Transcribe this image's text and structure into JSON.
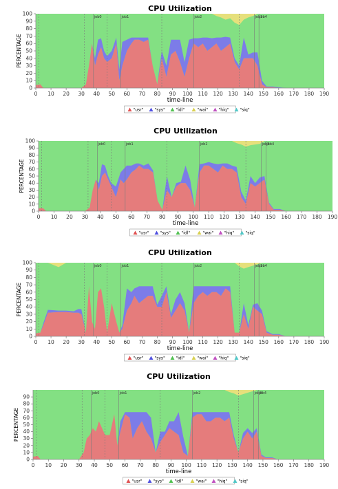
{
  "chart_data": [
    {
      "type": "area",
      "title": "CPU Utilization",
      "xlabel": "time-line",
      "ylabel": "PERCENTAGE",
      "xlim": [
        0,
        190
      ],
      "ylim": [
        0,
        100
      ],
      "xticks": [
        0,
        10,
        20,
        30,
        40,
        50,
        60,
        70,
        80,
        90,
        100,
        110,
        120,
        130,
        140,
        150,
        160,
        170,
        180,
        190
      ],
      "yticks": [
        0,
        10,
        20,
        30,
        40,
        50,
        60,
        70,
        80,
        90,
        100
      ],
      "grid": false,
      "legend": "bottom",
      "legend_labels": [
        "\"usr\"",
        "\"sys\"",
        "\"idl\"",
        "\"wai\"",
        "\"hiq\"",
        "\"siq\""
      ],
      "markers": [
        {
          "x": 2,
          "label": ""
        },
        {
          "x": 32,
          "label": ""
        },
        {
          "x": 38,
          "label": "job0"
        },
        {
          "x": 47,
          "label": ""
        },
        {
          "x": 56,
          "label": "job1"
        },
        {
          "x": 83,
          "label": ""
        },
        {
          "x": 104,
          "label": "job2"
        },
        {
          "x": 134,
          "label": ""
        },
        {
          "x": 144,
          "label": "job3"
        },
        {
          "x": 147,
          "label": "job4"
        }
      ],
      "x": [
        0,
        3,
        5,
        30,
        33,
        35,
        37,
        39,
        41,
        43,
        45,
        47,
        50,
        53,
        55,
        57,
        60,
        63,
        65,
        68,
        71,
        74,
        77,
        80,
        83,
        86,
        89,
        92,
        95,
        98,
        101,
        104,
        107,
        110,
        113,
        116,
        119,
        122,
        125,
        128,
        131,
        134,
        137,
        140,
        143,
        146,
        149,
        152,
        156,
        160,
        165,
        190
      ],
      "usr": [
        4,
        5,
        0,
        0,
        5,
        30,
        60,
        30,
        45,
        55,
        40,
        35,
        40,
        60,
        10,
        30,
        50,
        60,
        65,
        65,
        62,
        65,
        30,
        5,
        40,
        15,
        45,
        50,
        35,
        15,
        40,
        60,
        55,
        60,
        50,
        55,
        60,
        50,
        55,
        60,
        35,
        25,
        40,
        40,
        40,
        30,
        5,
        1,
        1,
        0,
        0,
        0
      ],
      "sys": [
        0,
        0,
        0,
        0,
        0,
        0,
        0,
        10,
        20,
        12,
        10,
        8,
        10,
        8,
        15,
        32,
        15,
        8,
        3,
        3,
        6,
        3,
        0,
        0,
        10,
        15,
        20,
        15,
        30,
        20,
        25,
        7,
        12,
        8,
        18,
        12,
        8,
        18,
        14,
        8,
        5,
        5,
        28,
        5,
        8,
        18,
        5,
        1,
        1,
        1,
        0,
        0
      ],
      "wai": [
        0,
        0,
        0,
        0,
        0,
        0,
        0,
        0,
        0,
        0,
        0,
        0,
        0,
        0,
        0,
        0,
        0,
        0,
        0,
        0,
        0,
        0,
        0,
        0,
        0,
        0,
        0,
        0,
        0,
        0,
        0,
        0,
        0,
        0,
        0,
        0,
        3,
        5,
        8,
        6,
        12,
        15,
        8,
        5,
        3,
        0,
        0,
        0,
        0,
        0,
        0,
        0
      ]
    },
    {
      "type": "area",
      "title": "CPU Utilization",
      "xlabel": "time-line",
      "ylabel": "PERCENTAGE",
      "xlim": [
        0,
        190
      ],
      "ylim": [
        0,
        100
      ],
      "xticks": [
        0,
        10,
        20,
        30,
        40,
        50,
        60,
        70,
        80,
        90,
        100,
        110,
        120,
        130,
        140,
        150,
        160,
        170,
        180,
        190
      ],
      "yticks": [
        0,
        10,
        20,
        30,
        40,
        50,
        60,
        70,
        80,
        90,
        100
      ],
      "grid": false,
      "legend": "bottom",
      "legend_labels": [
        "\"usr\"",
        "\"sys\"",
        "\"idl\"",
        "\"wai\"",
        "\"hiq\"",
        "\"siq\""
      ],
      "markers": [
        {
          "x": 2,
          "label": ""
        },
        {
          "x": 32,
          "label": ""
        },
        {
          "x": 38,
          "label": "job0"
        },
        {
          "x": 47,
          "label": ""
        },
        {
          "x": 56,
          "label": "job1"
        },
        {
          "x": 83,
          "label": ""
        },
        {
          "x": 104,
          "label": "job2"
        },
        {
          "x": 134,
          "label": ""
        },
        {
          "x": 144,
          "label": "job3"
        },
        {
          "x": 147,
          "label": "job4"
        }
      ],
      "x": [
        0,
        3,
        5,
        30,
        33,
        35,
        37,
        39,
        41,
        43,
        45,
        47,
        50,
        53,
        55,
        57,
        60,
        63,
        65,
        68,
        71,
        74,
        77,
        80,
        83,
        86,
        89,
        92,
        95,
        98,
        101,
        104,
        107,
        110,
        113,
        116,
        119,
        122,
        125,
        128,
        131,
        134,
        137,
        140,
        143,
        146,
        149,
        152,
        156,
        160,
        165,
        190
      ],
      "usr": [
        4,
        4,
        0,
        0,
        5,
        30,
        45,
        30,
        50,
        55,
        45,
        35,
        20,
        45,
        40,
        45,
        55,
        60,
        65,
        60,
        60,
        55,
        15,
        2,
        30,
        20,
        35,
        40,
        40,
        30,
        5,
        55,
        65,
        65,
        60,
        55,
        65,
        60,
        60,
        55,
        20,
        10,
        40,
        35,
        40,
        45,
        10,
        2,
        2,
        0,
        0,
        0
      ],
      "sys": [
        0,
        0,
        0,
        0,
        0,
        0,
        0,
        10,
        17,
        10,
        5,
        5,
        15,
        10,
        20,
        20,
        10,
        8,
        3,
        5,
        8,
        3,
        0,
        0,
        20,
        0,
        5,
        2,
        25,
        15,
        0,
        12,
        3,
        5,
        8,
        12,
        3,
        8,
        5,
        8,
        8,
        5,
        10,
        5,
        8,
        5,
        2,
        1,
        1,
        0,
        0,
        0
      ],
      "wai": [
        0,
        0,
        0,
        0,
        0,
        0,
        0,
        0,
        0,
        0,
        0,
        0,
        0,
        0,
        0,
        0,
        0,
        0,
        0,
        0,
        0,
        0,
        0,
        0,
        0,
        0,
        0,
        0,
        0,
        0,
        0,
        0,
        0,
        0,
        0,
        0,
        0,
        0,
        0,
        3,
        5,
        8,
        6,
        5,
        4,
        0,
        0,
        0,
        0,
        0,
        0,
        0
      ]
    },
    {
      "type": "area",
      "title": "CPU Utilization",
      "xlabel": "time-line",
      "ylabel": "PERCENTAGE",
      "xlim": [
        0,
        190
      ],
      "ylim": [
        0,
        100
      ],
      "xticks": [
        0,
        10,
        20,
        30,
        40,
        50,
        60,
        70,
        80,
        90,
        100,
        110,
        120,
        130,
        140,
        150,
        160,
        170,
        180,
        190
      ],
      "yticks": [
        0,
        10,
        20,
        30,
        40,
        50,
        60,
        70,
        80,
        90,
        100
      ],
      "grid": false,
      "legend": "bottom",
      "legend_labels": [
        "\"usr\"",
        "\"sys\"",
        "\"idl\"",
        "\"wai\"",
        "\"hiq\"",
        "\"siq\""
      ],
      "markers": [
        {
          "x": 2,
          "label": ""
        },
        {
          "x": 32,
          "label": ""
        },
        {
          "x": 38,
          "label": "job0"
        },
        {
          "x": 47,
          "label": ""
        },
        {
          "x": 56,
          "label": "job1"
        },
        {
          "x": 83,
          "label": ""
        },
        {
          "x": 104,
          "label": "job2"
        },
        {
          "x": 134,
          "label": ""
        },
        {
          "x": 144,
          "label": "job3"
        },
        {
          "x": 147,
          "label": "job4"
        }
      ],
      "x": [
        0,
        3,
        5,
        8,
        15,
        20,
        25,
        28,
        30,
        33,
        35,
        37,
        39,
        41,
        43,
        45,
        47,
        50,
        53,
        55,
        57,
        60,
        63,
        65,
        68,
        71,
        74,
        77,
        80,
        83,
        86,
        89,
        92,
        95,
        98,
        101,
        104,
        107,
        110,
        113,
        116,
        119,
        122,
        125,
        128,
        131,
        134,
        137,
        140,
        143,
        146,
        149,
        152,
        156,
        160,
        165,
        190
      ],
      "usr": [
        4,
        5,
        15,
        32,
        33,
        33,
        32,
        32,
        30,
        5,
        68,
        20,
        10,
        60,
        65,
        40,
        5,
        45,
        20,
        5,
        10,
        35,
        45,
        55,
        45,
        50,
        55,
        55,
        40,
        40,
        60,
        25,
        35,
        45,
        35,
        5,
        45,
        55,
        60,
        55,
        60,
        60,
        55,
        65,
        60,
        5,
        5,
        30,
        10,
        40,
        35,
        30,
        5,
        2,
        2,
        0,
        0
      ],
      "sys": [
        0,
        0,
        3,
        4,
        2,
        2,
        2,
        5,
        7,
        0,
        0,
        0,
        0,
        0,
        0,
        0,
        0,
        0,
        0,
        0,
        5,
        30,
        15,
        10,
        23,
        18,
        13,
        13,
        3,
        15,
        8,
        5,
        15,
        15,
        10,
        0,
        23,
        13,
        8,
        13,
        8,
        8,
        13,
        3,
        8,
        0,
        0,
        15,
        5,
        3,
        10,
        5,
        2,
        1,
        1,
        0,
        0
      ],
      "wai": [
        0,
        0,
        0,
        0,
        6,
        0,
        0,
        0,
        0,
        0,
        0,
        0,
        0,
        0,
        0,
        0,
        0,
        0,
        0,
        0,
        0,
        0,
        0,
        0,
        0,
        0,
        0,
        0,
        0,
        0,
        0,
        0,
        0,
        0,
        0,
        0,
        0,
        0,
        0,
        0,
        0,
        0,
        0,
        0,
        0,
        0,
        5,
        8,
        6,
        4,
        2,
        0,
        0,
        0,
        0,
        0,
        0
      ]
    },
    {
      "type": "area",
      "title": "CPU Utilization",
      "xlabel": "time-line",
      "ylabel": "PERCENTAGE",
      "xlim": [
        0,
        190
      ],
      "ylim": [
        0,
        100
      ],
      "xticks": [
        0,
        10,
        20,
        30,
        40,
        50,
        60,
        70,
        80,
        90,
        100,
        110,
        120,
        130,
        140,
        150,
        160,
        170,
        180,
        190
      ],
      "yticks": [
        0,
        10,
        20,
        30,
        40,
        50,
        60,
        70,
        80,
        90
      ],
      "grid": false,
      "legend": "bottom",
      "legend_labels": [
        "\"usr\"",
        "\"sys\"",
        "\"idl\"",
        "\"wai\"",
        "\"hiq\"",
        "\"siq\""
      ],
      "markers": [
        {
          "x": 2,
          "label": ""
        },
        {
          "x": 32,
          "label": ""
        },
        {
          "x": 38,
          "label": "job0"
        },
        {
          "x": 47,
          "label": ""
        },
        {
          "x": 56,
          "label": "job1"
        },
        {
          "x": 83,
          "label": ""
        },
        {
          "x": 104,
          "label": "job2"
        },
        {
          "x": 134,
          "label": ""
        },
        {
          "x": 144,
          "label": "job3"
        },
        {
          "x": 147,
          "label": "job4"
        }
      ],
      "x": [
        0,
        3,
        5,
        30,
        33,
        35,
        37,
        39,
        41,
        43,
        45,
        47,
        50,
        53,
        55,
        57,
        60,
        63,
        65,
        68,
        71,
        74,
        77,
        80,
        83,
        86,
        89,
        92,
        95,
        98,
        101,
        104,
        107,
        110,
        113,
        116,
        119,
        122,
        125,
        128,
        131,
        134,
        137,
        140,
        143,
        146,
        149,
        152,
        156,
        160,
        165,
        190
      ],
      "usr": [
        4,
        5,
        0,
        0,
        10,
        30,
        35,
        45,
        40,
        55,
        45,
        35,
        35,
        65,
        20,
        40,
        65,
        60,
        30,
        45,
        55,
        40,
        30,
        10,
        25,
        35,
        45,
        40,
        35,
        10,
        5,
        60,
        65,
        65,
        55,
        55,
        60,
        60,
        55,
        60,
        30,
        10,
        30,
        40,
        30,
        40,
        5,
        2,
        2,
        0,
        0,
        0
      ],
      "sys": [
        0,
        0,
        0,
        0,
        0,
        0,
        0,
        0,
        0,
        0,
        0,
        0,
        0,
        0,
        0,
        15,
        3,
        8,
        38,
        23,
        13,
        28,
        30,
        0,
        15,
        5,
        10,
        15,
        33,
        23,
        0,
        8,
        3,
        3,
        13,
        13,
        8,
        8,
        13,
        8,
        5,
        0,
        8,
        5,
        8,
        5,
        2,
        1,
        1,
        0,
        0,
        0
      ],
      "wai": [
        0,
        0,
        0,
        0,
        0,
        0,
        0,
        0,
        0,
        0,
        0,
        0,
        0,
        0,
        0,
        0,
        0,
        0,
        0,
        0,
        0,
        0,
        0,
        0,
        0,
        0,
        0,
        0,
        0,
        0,
        0,
        0,
        0,
        0,
        0,
        0,
        0,
        0,
        0,
        3,
        5,
        8,
        6,
        4,
        2,
        0,
        0,
        0,
        0,
        0,
        0,
        0
      ]
    }
  ]
}
